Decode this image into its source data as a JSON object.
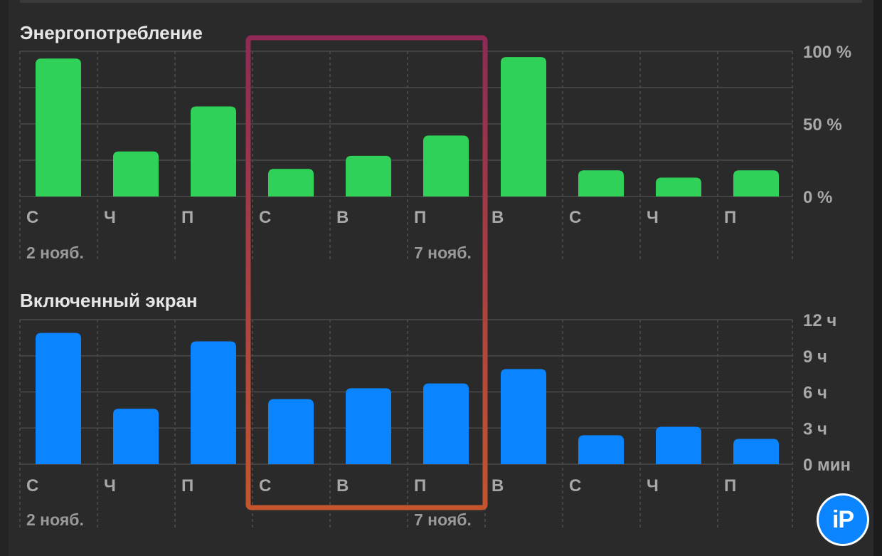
{
  "chart_data": [
    {
      "type": "bar",
      "title": "Энергопотребление",
      "categories": [
        "С",
        "Ч",
        "П",
        "С",
        "В",
        "П",
        "В",
        "С",
        "Ч",
        "П"
      ],
      "date_labels": [
        {
          "index": 0,
          "text": "2 нояб."
        },
        {
          "index": 5,
          "text": "7 нояб."
        }
      ],
      "values": [
        95,
        31,
        62,
        19,
        28,
        42,
        96,
        18,
        13,
        18
      ],
      "unit": "%",
      "ylim": [
        0,
        100
      ],
      "yticks": [
        {
          "value": 100,
          "label": "100 %"
        },
        {
          "value": 50,
          "label": "50 %"
        },
        {
          "value": 0,
          "label": "0 %"
        }
      ],
      "color": "#30d158",
      "grid": true
    },
    {
      "type": "bar",
      "title": "Включенный экран",
      "categories": [
        "С",
        "Ч",
        "П",
        "С",
        "В",
        "П",
        "В",
        "С",
        "Ч",
        "П"
      ],
      "date_labels": [
        {
          "index": 0,
          "text": "2 нояб."
        },
        {
          "index": 5,
          "text": "7 нояб."
        }
      ],
      "values": [
        10.9,
        4.6,
        10.2,
        5.4,
        6.3,
        6.7,
        7.9,
        2.4,
        3.1,
        2.1
      ],
      "unit": "ч",
      "ylim": [
        0,
        12
      ],
      "yticks": [
        {
          "value": 12,
          "label": "12 ч"
        },
        {
          "value": 9,
          "label": "9 ч"
        },
        {
          "value": 6,
          "label": "6 ч"
        },
        {
          "value": 3,
          "label": "3 ч"
        },
        {
          "value": 0,
          "label": "0 мин"
        }
      ],
      "color": "#0a84ff",
      "grid": true
    }
  ],
  "highlight": {
    "description_categories": [
      3,
      4,
      5
    ],
    "color_top": "#8e2a55",
    "color_bottom": "#c4552e"
  },
  "logo": {
    "text": "iP"
  }
}
